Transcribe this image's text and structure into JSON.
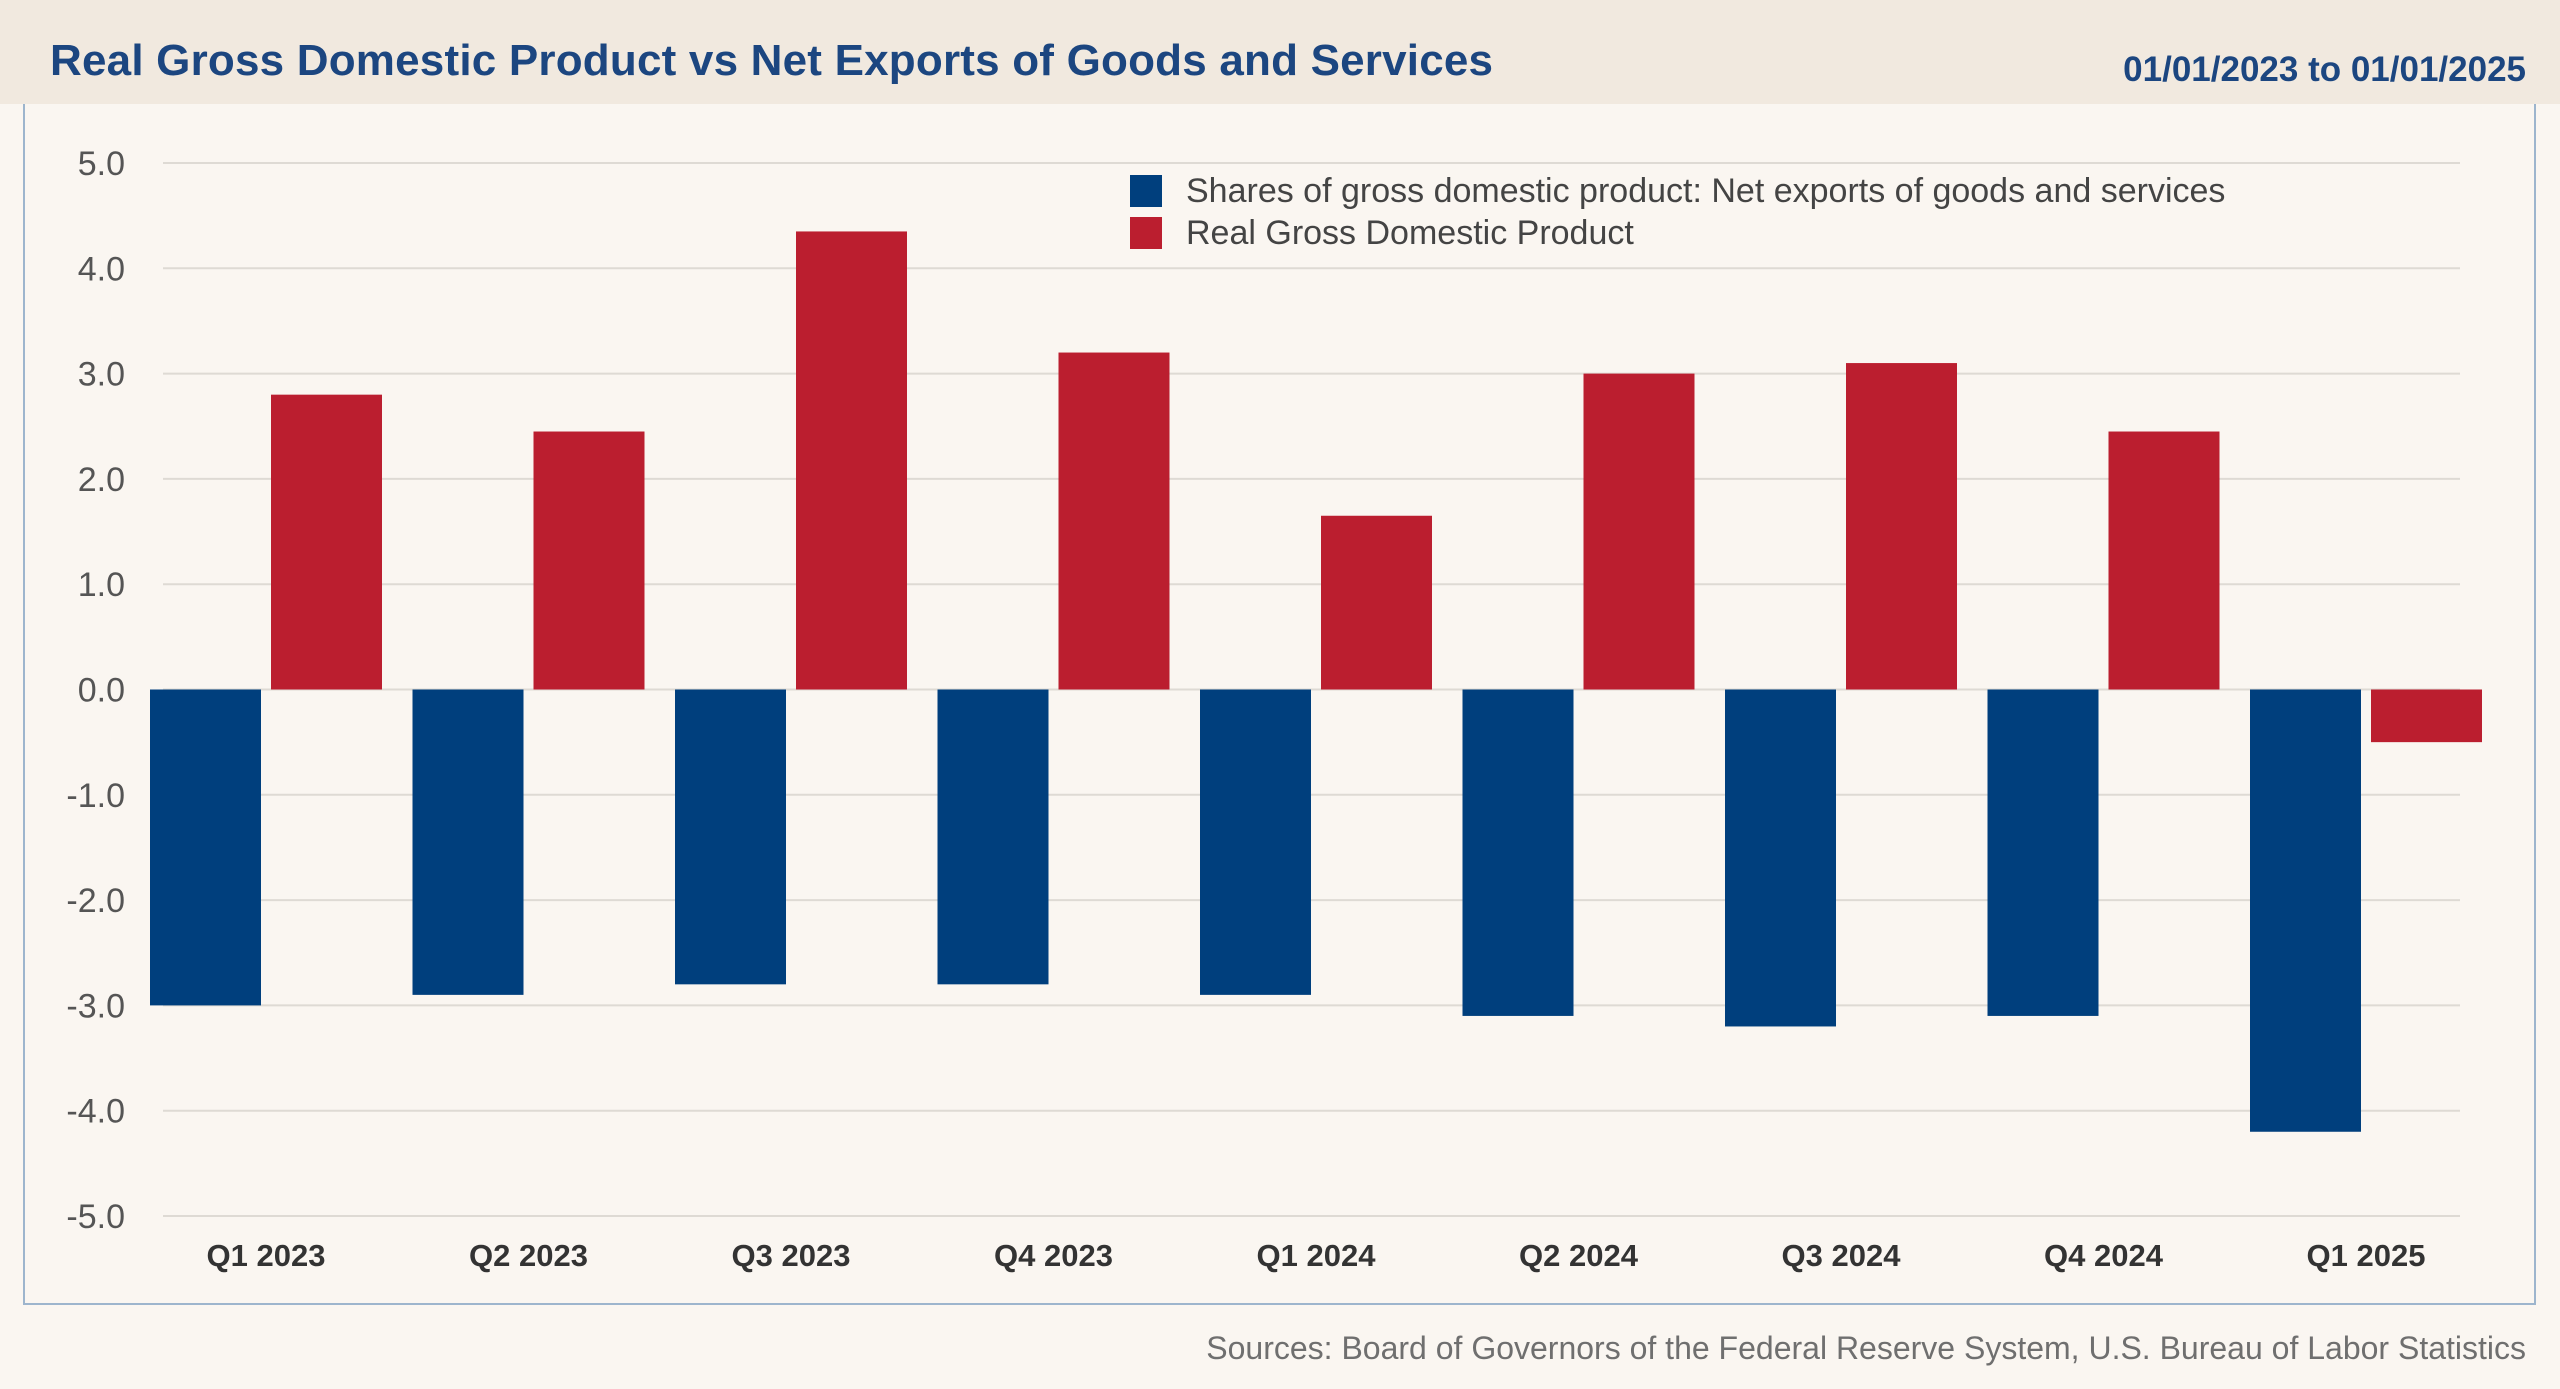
{
  "header": {
    "title": "Real Gross Domestic Product vs Net Exports of Goods and Services",
    "date_range": "01/01/2023 to 01/01/2025"
  },
  "footer": {
    "source": "Sources: Board of Governors of the Federal Reserve System, U.S. Bureau of Labor Statistics"
  },
  "colors": {
    "net_exports": "#003f7d",
    "real_gdp": "#bb1e2f",
    "grid": "#dedad4",
    "title": "#1c4680"
  },
  "legend": {
    "position": "top-center",
    "items": [
      {
        "label": "Shares of gross domestic product: Net exports of goods and services",
        "color": "#003f7d"
      },
      {
        "label": "Real Gross Domestic Product",
        "color": "#bb1e2f"
      }
    ]
  },
  "chart_data": {
    "type": "bar",
    "categories": [
      "Q1 2023",
      "Q2 2023",
      "Q3 2023",
      "Q4 2023",
      "Q1 2024",
      "Q2 2024",
      "Q3 2024",
      "Q4 2024",
      "Q1 2025"
    ],
    "series": [
      {
        "name": "Shares of gross domestic product: Net exports of goods and services",
        "color": "#003f7d",
        "values": [
          -3.0,
          -2.9,
          -2.8,
          -2.8,
          -2.9,
          -3.1,
          -3.2,
          -3.1,
          -4.2
        ]
      },
      {
        "name": "Real Gross Domestic Product",
        "color": "#bb1e2f",
        "values": [
          2.8,
          2.45,
          4.35,
          3.2,
          1.65,
          3.0,
          3.1,
          2.45,
          -0.5
        ]
      }
    ],
    "ylim": [
      -5.0,
      5.0
    ],
    "yticks": [
      "5.0",
      "4.0",
      "3.0",
      "2.0",
      "1.0",
      "0.0",
      "-1.0",
      "-2.0",
      "-3.0",
      "-4.0",
      "-5.0"
    ],
    "grid": true,
    "legend_position": "top-center"
  }
}
